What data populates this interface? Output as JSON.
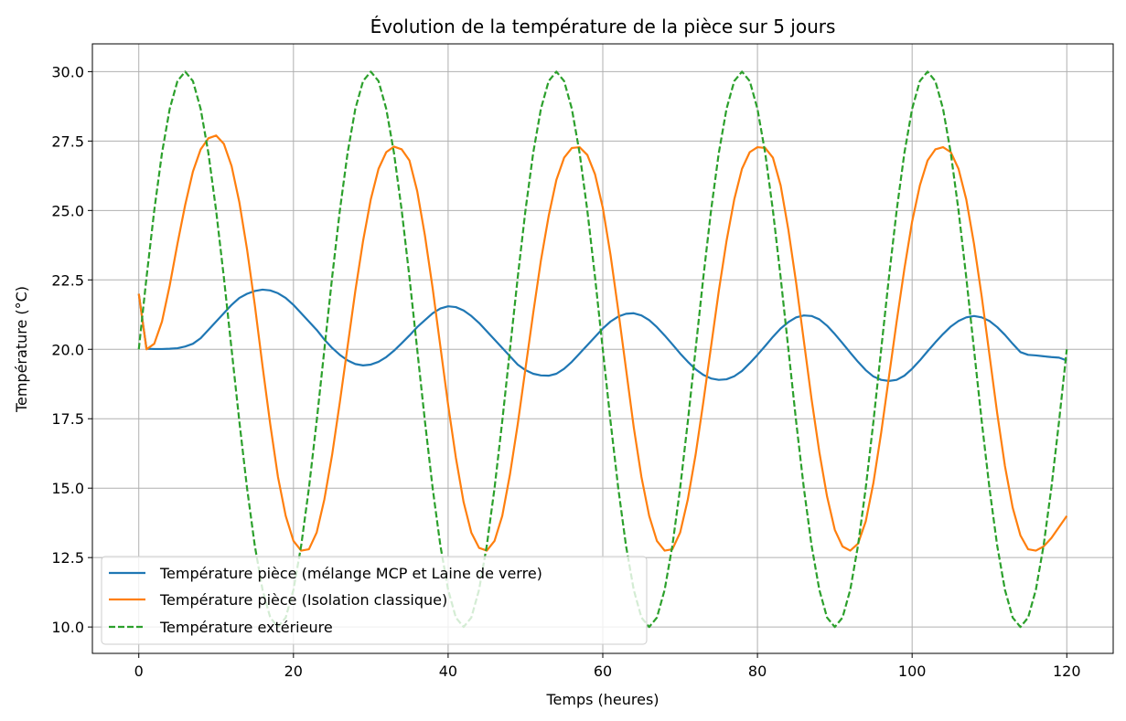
{
  "chart_data": {
    "type": "line",
    "title": "Évolution de la température de la pièce sur 5 jours",
    "xlabel": "Temps (heures)",
    "ylabel": "Température (°C)",
    "xlim": [
      -6,
      126
    ],
    "ylim": [
      9.05,
      31.0
    ],
    "xticks": [
      0,
      20,
      40,
      60,
      80,
      100,
      120
    ],
    "xtick_labels": [
      "0",
      "20",
      "40",
      "60",
      "80",
      "100",
      "120"
    ],
    "yticks": [
      10.0,
      12.5,
      15.0,
      17.5,
      20.0,
      22.5,
      25.0,
      27.5,
      30.0
    ],
    "ytick_labels": [
      "10.0",
      "12.5",
      "15.0",
      "17.5",
      "20.0",
      "22.5",
      "25.0",
      "27.5",
      "30.0"
    ],
    "grid": true,
    "legend_position": "bottom-left",
    "x": [
      0,
      1,
      2,
      3,
      4,
      5,
      6,
      7,
      8,
      9,
      10,
      11,
      12,
      13,
      14,
      15,
      16,
      17,
      18,
      19,
      20,
      21,
      22,
      23,
      24,
      25,
      26,
      27,
      28,
      29,
      30,
      31,
      32,
      33,
      34,
      35,
      36,
      37,
      38,
      39,
      40,
      41,
      42,
      43,
      44,
      45,
      46,
      47,
      48,
      49,
      50,
      51,
      52,
      53,
      54,
      55,
      56,
      57,
      58,
      59,
      60,
      61,
      62,
      63,
      64,
      65,
      66,
      67,
      68,
      69,
      70,
      71,
      72,
      73,
      74,
      75,
      76,
      77,
      78,
      79,
      80,
      81,
      82,
      83,
      84,
      85,
      86,
      87,
      88,
      89,
      90,
      91,
      92,
      93,
      94,
      95,
      96,
      97,
      98,
      99,
      100,
      101,
      102,
      103,
      104,
      105,
      106,
      107,
      108,
      109,
      110,
      111,
      112,
      113,
      114,
      115,
      116,
      117,
      118,
      119,
      120
    ],
    "series": [
      {
        "name": "Température pièce (mélange MCP et Laine de verre)",
        "color": "#1f77b4",
        "dash": "solid",
        "y": [
          22.0,
          20.02,
          20.01,
          20.01,
          20.02,
          20.04,
          20.1,
          20.2,
          20.4,
          20.7,
          21.0,
          21.3,
          21.6,
          21.85,
          22.0,
          22.1,
          22.15,
          22.12,
          22.02,
          21.85,
          21.6,
          21.3,
          21.0,
          20.7,
          20.35,
          20.05,
          19.8,
          19.6,
          19.47,
          19.42,
          19.45,
          19.55,
          19.72,
          19.95,
          20.22,
          20.5,
          20.8,
          21.05,
          21.3,
          21.47,
          21.55,
          21.52,
          21.4,
          21.2,
          20.95,
          20.65,
          20.35,
          20.05,
          19.75,
          19.45,
          19.25,
          19.12,
          19.06,
          19.05,
          19.12,
          19.3,
          19.55,
          19.85,
          20.15,
          20.45,
          20.75,
          21.0,
          21.18,
          21.28,
          21.3,
          21.22,
          21.05,
          20.8,
          20.5,
          20.18,
          19.85,
          19.55,
          19.28,
          19.08,
          18.95,
          18.9,
          18.92,
          19.03,
          19.22,
          19.5,
          19.8,
          20.12,
          20.45,
          20.75,
          20.98,
          21.15,
          21.22,
          21.2,
          21.08,
          20.85,
          20.55,
          20.22,
          19.88,
          19.55,
          19.25,
          19.02,
          18.9,
          18.86,
          18.9,
          19.05,
          19.3,
          19.6,
          19.93,
          20.25,
          20.55,
          20.82,
          21.02,
          21.15,
          21.2,
          21.15,
          21.02,
          20.8,
          20.52,
          20.2,
          19.9,
          19.8,
          19.78,
          19.75,
          19.72,
          19.7,
          19.6
        ]
      },
      {
        "name": "Température pièce (Isolation classique)",
        "color": "#ff7f0e",
        "dash": "solid",
        "y": [
          22.0,
          20.0,
          20.2,
          21.0,
          22.3,
          23.8,
          25.2,
          26.4,
          27.2,
          27.6,
          27.7,
          27.4,
          26.6,
          25.3,
          23.6,
          21.6,
          19.4,
          17.3,
          15.4,
          14.0,
          13.1,
          12.75,
          12.8,
          13.4,
          14.6,
          16.2,
          18.1,
          20.1,
          22.1,
          23.9,
          25.4,
          26.5,
          27.1,
          27.3,
          27.2,
          26.8,
          25.7,
          24.1,
          22.2,
          20.1,
          18.0,
          16.1,
          14.5,
          13.4,
          12.85,
          12.75,
          13.1,
          14.0,
          15.5,
          17.3,
          19.3,
          21.3,
          23.2,
          24.8,
          26.1,
          26.9,
          27.25,
          27.28,
          27.0,
          26.3,
          25.1,
          23.4,
          21.4,
          19.3,
          17.2,
          15.4,
          14.0,
          13.1,
          12.75,
          12.8,
          13.4,
          14.6,
          16.2,
          18.1,
          20.1,
          22.1,
          23.9,
          25.4,
          26.5,
          27.1,
          27.28,
          27.25,
          26.9,
          25.9,
          24.3,
          22.4,
          20.3,
          18.2,
          16.3,
          14.7,
          13.5,
          12.9,
          12.75,
          13.0,
          13.8,
          15.2,
          17.0,
          19.0,
          21.0,
          22.9,
          24.6,
          25.9,
          26.8,
          27.2,
          27.28,
          27.1,
          26.5,
          25.4,
          23.8,
          21.9,
          19.8,
          17.7,
          15.8,
          14.3,
          13.3,
          12.8,
          12.75,
          12.9,
          13.2,
          13.6,
          14.0
        ]
      },
      {
        "name": "Température extérieure",
        "color": "#2ca02c",
        "dash": "dashed",
        "y": [
          20.0,
          22.59,
          25.0,
          27.07,
          28.66,
          29.66,
          30.0,
          29.66,
          28.66,
          27.07,
          25.0,
          22.59,
          20.0,
          17.41,
          15.0,
          12.93,
          11.34,
          10.34,
          10.0,
          10.34,
          11.34,
          12.93,
          15.0,
          17.41,
          20.0,
          22.59,
          25.0,
          27.07,
          28.66,
          29.66,
          30.0,
          29.66,
          28.66,
          27.07,
          25.0,
          22.59,
          20.0,
          17.41,
          15.0,
          12.93,
          11.34,
          10.34,
          10.0,
          10.34,
          11.34,
          12.93,
          15.0,
          17.41,
          20.0,
          22.59,
          25.0,
          27.07,
          28.66,
          29.66,
          30.0,
          29.66,
          28.66,
          27.07,
          25.0,
          22.59,
          20.0,
          17.41,
          15.0,
          12.93,
          11.34,
          10.34,
          10.0,
          10.34,
          11.34,
          12.93,
          15.0,
          17.41,
          20.0,
          22.59,
          25.0,
          27.07,
          28.66,
          29.66,
          30.0,
          29.66,
          28.66,
          27.07,
          25.0,
          22.59,
          20.0,
          17.41,
          15.0,
          12.93,
          11.34,
          10.34,
          10.0,
          10.34,
          11.34,
          12.93,
          15.0,
          17.41,
          20.0,
          22.59,
          25.0,
          27.07,
          28.66,
          29.66,
          30.0,
          29.66,
          28.66,
          27.07,
          25.0,
          22.59,
          20.0,
          17.41,
          15.0,
          12.93,
          11.34,
          10.34,
          10.0,
          10.34,
          11.34,
          12.93,
          15.0,
          17.41,
          20.0
        ]
      }
    ]
  }
}
